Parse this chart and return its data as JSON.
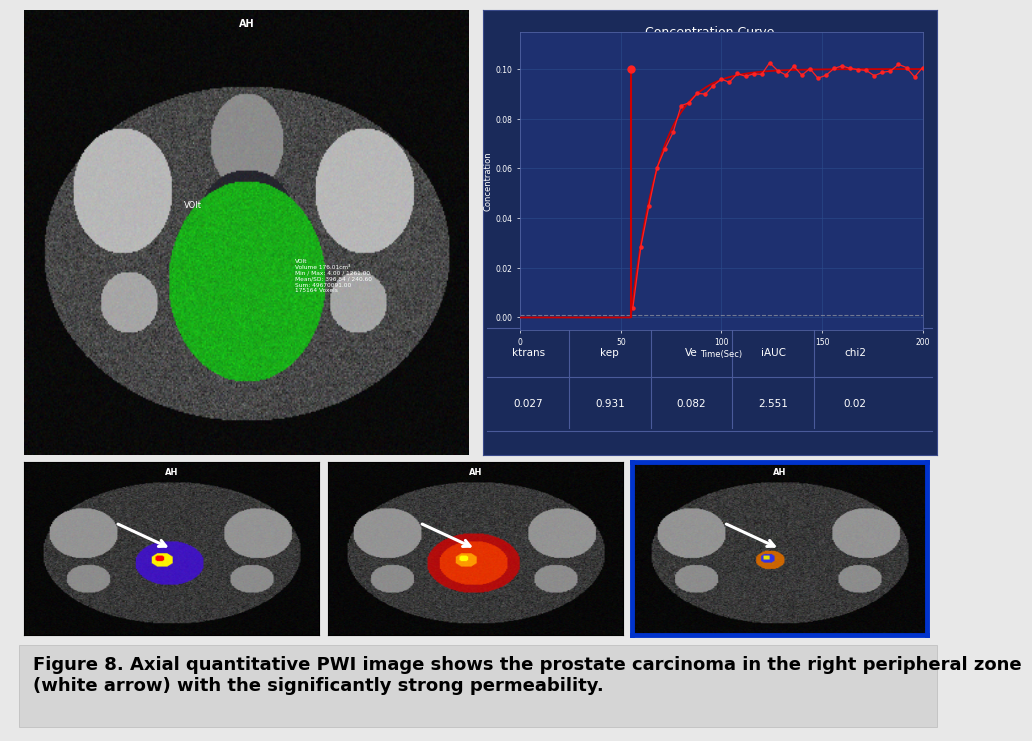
{
  "title": "Concentration Curve",
  "xlabel": "Time(Sec)",
  "ylabel": "Concentration",
  "xlim": [
    0,
    200
  ],
  "ylim": [
    -0.005,
    0.115
  ],
  "yticks": [
    0.0,
    0.02,
    0.04,
    0.06,
    0.08,
    0.1
  ],
  "xticks": [
    0,
    50,
    100,
    150,
    200
  ],
  "bg_color": "#1a2a5a",
  "plot_bg": "#1e3070",
  "grid_color": "#2a4a8a",
  "line_color": "#cc0000",
  "dot_color": "#ff2222",
  "table_headers": [
    "ktrans",
    "kep",
    "Ve",
    "iAUC",
    "chi2"
  ],
  "table_values": [
    "0.027",
    "0.931",
    "0.082",
    "2.551",
    "0.02"
  ],
  "figure_caption": "Figure 8. Axial quantitative PWI image shows the prostate carcinoma in the right peripheral zone\n(white arrow) with the significantly strong permeability.",
  "caption_fontsize": 13,
  "outer_bg": "#e8e8e8",
  "table_line_color": "#4a5a9a"
}
